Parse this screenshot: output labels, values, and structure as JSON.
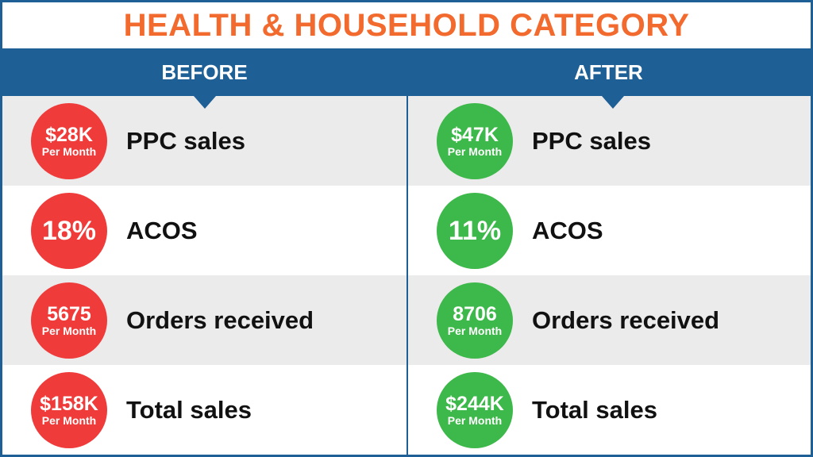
{
  "title": "HEALTH & HOUSEHOLD CATEGORY",
  "columns": {
    "before": "BEFORE",
    "after": "AFTER"
  },
  "colors": {
    "title": "#f26a2e",
    "header": "#1e5f96",
    "before_circle": "#f03b3b",
    "after_circle": "#3db84a",
    "row_alt": "#ebebeb"
  },
  "rows": [
    {
      "label": "PPC sales",
      "before": {
        "value": "$28K",
        "unit": "Per Month"
      },
      "after": {
        "value": "$47K",
        "unit": "Per Month"
      }
    },
    {
      "label": "ACOS",
      "before": {
        "value": "18%",
        "unit": ""
      },
      "after": {
        "value": "11%",
        "unit": ""
      }
    },
    {
      "label": "Orders received",
      "before": {
        "value": "5675",
        "unit": "Per Month"
      },
      "after": {
        "value": "8706",
        "unit": "Per Month"
      }
    },
    {
      "label": "Total sales",
      "before": {
        "value": "$158K",
        "unit": "Per Month"
      },
      "after": {
        "value": "$244K",
        "unit": "Per Month"
      }
    }
  ]
}
